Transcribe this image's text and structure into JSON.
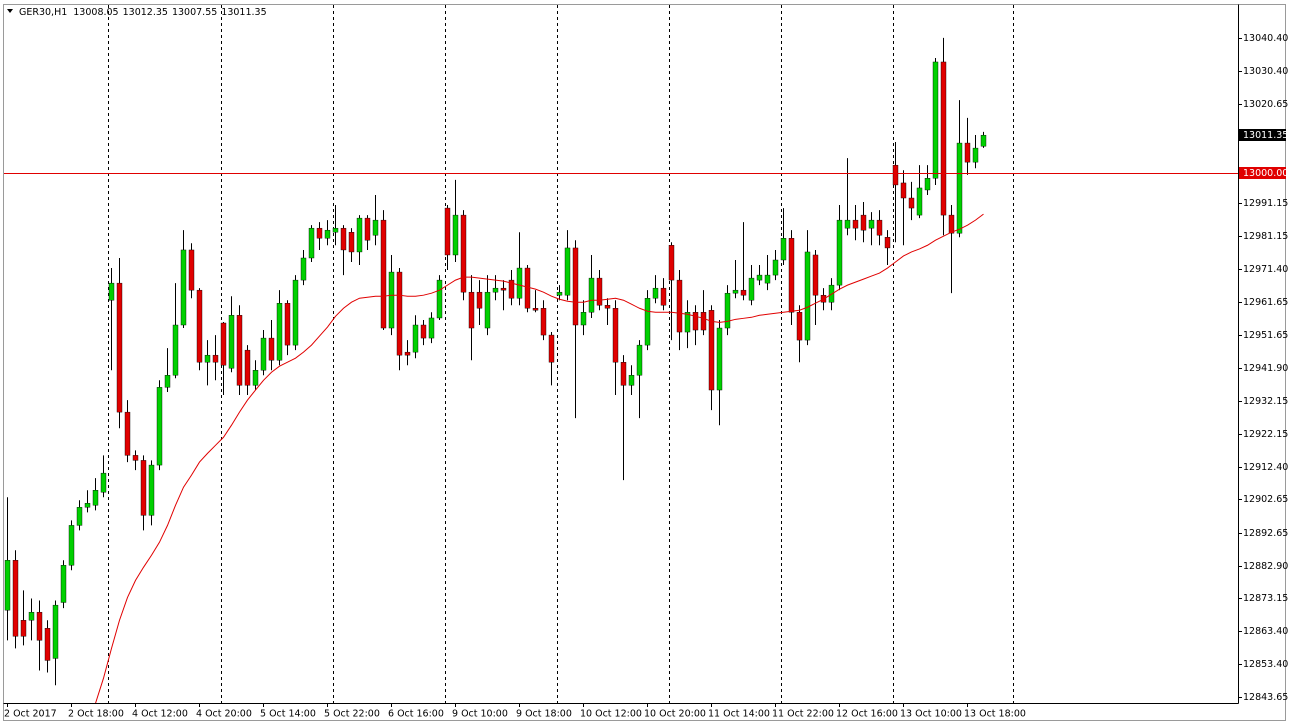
{
  "chart_data": {
    "type": "candlestick",
    "title": "GER30,H1",
    "categories": [
      "2 Oct 2017",
      null,
      null,
      null,
      null,
      null,
      null,
      null,
      "2 Oct 18:00",
      null,
      null,
      null,
      null,
      null,
      null,
      null,
      "4 Oct 12:00",
      null,
      null,
      null,
      null,
      null,
      null,
      null,
      "4 Oct 20:00",
      null,
      null,
      null,
      null,
      null,
      null,
      null,
      "5 Oct 14:00",
      null,
      null,
      null,
      null,
      null,
      null,
      null,
      "5 Oct 22:00",
      null,
      null,
      null,
      null,
      null,
      null,
      null,
      "6 Oct 16:00",
      null,
      null,
      null,
      null,
      null,
      null,
      null,
      "9 Oct 10:00",
      null,
      null,
      null,
      null,
      null,
      null,
      null,
      "9 Oct 18:00",
      null,
      null,
      null,
      null,
      null,
      null,
      null,
      "10 Oct 12:00",
      null,
      null,
      null,
      null,
      null,
      null,
      null,
      "10 Oct 20:00",
      null,
      null,
      null,
      null,
      null,
      null,
      null,
      "11 Oct 14:00",
      null,
      null,
      null,
      null,
      null,
      null,
      null,
      "11 Oct 22:00",
      null,
      null,
      null,
      null,
      null,
      null,
      null,
      "12 Oct 16:00",
      null,
      null,
      null,
      null,
      null,
      null,
      null,
      "13 Oct 10:00",
      null,
      null,
      null,
      null,
      null,
      null,
      null,
      "13 Oct 18:00",
      null,
      null
    ],
    "open": [
      12869.6,
      12884.5,
      12866.6,
      12866.6,
      12869.0,
      12864.2,
      12855.2,
      12871.9,
      12883.0,
      12894.9,
      12900.3,
      12900.9,
      12904.8,
      12962.1,
      12967.2,
      12928.7,
      12915.8,
      12914.3,
      12897.9,
      12912.9,
      12936.1,
      12939.7,
      12954.7,
      12977.1,
      12965.1,
      12943.6,
      12945.7,
      12955.3,
      12941.8,
      12957.6,
      12947.2,
      12936.7,
      12941.2,
      12950.8,
      12944.2,
      12961.2,
      12948.7,
      12968.1,
      12974.7,
      12983.6,
      12980.6,
      12982.4,
      12983.6,
      12982.4,
      12976.5,
      12986.6,
      12981.5,
      12986.0,
      12953.8,
      12970.5,
      12946.6,
      12946.6,
      12954.7,
      12950.8,
      12956.8,
      12989.6,
      12975.6,
      12987.5,
      12964.5,
      12964.5,
      12953.8,
      12964.5,
      12965.7,
      12968.1,
      12962.7,
      12971.7,
      12959.7,
      12959.7,
      12951.7,
      12963.6,
      12963.6,
      12977.7,
      12954.7,
      12958.5,
      12968.7,
      12960.6,
      12959.7,
      12943.6,
      12936.7,
      12939.7,
      12948.7,
      12962.7,
      12965.7,
      12978.5,
      12968.1,
      12952.6,
      12958.5,
      12958.5,
      12959.1,
      12935.3,
      12953.8,
      12964.2,
      12965.1,
      12962.1,
      12968.1,
      12967.2,
      12969.6,
      12974.1,
      12980.6,
      12958.5,
      12950.2,
      12975.6,
      12963.6,
      12961.5,
      12966.6,
      12983.6,
      12986.0,
      12987.5,
      12983.6,
      12986.0,
      12980.9,
      13002.4,
      12997.1,
      12992.6,
      12987.5,
      12995.0,
      12998.5,
      13033.2,
      12987.5,
      12982.1,
      13009.0,
      13003.3,
      13008.05
    ],
    "high": [
      12903.3,
      12887.5,
      12875.5,
      12873.1,
      12872.5,
      12866.6,
      12872.5,
      12884.5,
      12896.4,
      12902.4,
      12905.4,
      12909.0,
      12915.8,
      12971.7,
      12974.7,
      12932.3,
      12917.3,
      12915.8,
      12914.3,
      12938.2,
      12947.8,
      12967.2,
      12983.0,
      12979.1,
      12965.7,
      12950.2,
      12951.7,
      12955.6,
      12963.3,
      12960.6,
      12948.7,
      12944.2,
      12953.2,
      12956.2,
      12965.1,
      12962.1,
      12969.6,
      12977.1,
      12984.5,
      12985.4,
      12986.0,
      12990.5,
      12984.5,
      12983.6,
      12987.5,
      12987.5,
      12993.5,
      12989.0,
      12975.6,
      12971.7,
      12950.2,
      12957.6,
      12956.2,
      12958.5,
      12969.6,
      12990.5,
      12998.0,
      12989.0,
      12969.6,
      12968.1,
      12969.6,
      12969.6,
      12968.1,
      12971.1,
      12982.4,
      12972.6,
      12965.1,
      12962.1,
      12952.6,
      12966.6,
      12983.0,
      12980.0,
      12962.1,
      12975.6,
      12971.1,
      12962.7,
      12962.1,
      12945.7,
      12942.7,
      12950.2,
      12965.1,
      12969.6,
      12968.7,
      12979.4,
      12971.1,
      12962.1,
      12960.6,
      12965.1,
      12960.6,
      12956.2,
      12966.6,
      12974.1,
      12985.4,
      12972.6,
      12972.6,
      12975.6,
      12977.1,
      12989.6,
      12983.0,
      12960.6,
      12983.0,
      12977.1,
      12965.7,
      12968.7,
      12990.5,
      13004.5,
      12990.5,
      12991.4,
      12988.4,
      12989.0,
      12983.0,
      13009.3,
      13000.9,
      12997.4,
      13002.4,
      13002.4,
      13034.4,
      13040.4,
      12990.5,
      13021.8,
      13016.5,
      13011.4,
      13012.35
    ],
    "low": [
      12860.6,
      12858.2,
      12859.1,
      12860.6,
      12851.6,
      12851.0,
      12847.2,
      12870.2,
      12881.5,
      12893.4,
      12898.8,
      12899.4,
      12903.3,
      12941.2,
      12923.9,
      12913.8,
      12911.4,
      12893.4,
      12894.9,
      12911.4,
      12934.7,
      12938.8,
      12953.8,
      12962.7,
      12941.2,
      12936.7,
      12938.2,
      12933.8,
      12940.6,
      12933.8,
      12933.8,
      12935.3,
      12939.7,
      12941.2,
      12942.7,
      12945.7,
      12947.2,
      12966.6,
      12973.5,
      12977.1,
      12978.5,
      12978.5,
      12969.6,
      12973.5,
      12972.6,
      12977.1,
      12978.5,
      12953.2,
      12951.7,
      12941.2,
      12942.7,
      12944.8,
      12948.7,
      12949.3,
      12956.2,
      12971.1,
      12973.5,
      12962.1,
      12944.2,
      12954.7,
      12951.7,
      12962.1,
      12959.1,
      12960.6,
      12960.6,
      12958.5,
      12958.5,
      12950.2,
      12936.7,
      12962.1,
      12962.1,
      12926.9,
      12951.7,
      12956.8,
      12959.1,
      12954.7,
      12933.8,
      12908.4,
      12933.8,
      12926.9,
      12947.2,
      12961.2,
      12959.1,
      12950.2,
      12947.2,
      12947.8,
      12948.7,
      12951.7,
      12929.3,
      12924.8,
      12951.7,
      12962.7,
      12962.1,
      12960.6,
      12966.6,
      12965.1,
      12968.1,
      12972.6,
      12954.7,
      12943.6,
      12948.7,
      12954.7,
      12959.1,
      12959.1,
      12965.1,
      12981.5,
      12980.0,
      12979.4,
      12978.5,
      12978.5,
      12972.6,
      12979.4,
      12978.5,
      12986.0,
      12986.6,
      12993.5,
      12996.5,
      12981.5,
      12964.2,
      12980.9,
      12999.5,
      13001.5,
      13007.55
    ],
    "close": [
      12884.5,
      12861.8,
      12861.8,
      12869.0,
      12860.6,
      12854.6,
      12871.1,
      12883.0,
      12894.9,
      12900.3,
      12901.5,
      12905.4,
      12910.5,
      12967.2,
      12928.7,
      12915.8,
      12914.3,
      12897.9,
      12912.9,
      12936.1,
      12939.7,
      12954.7,
      12977.1,
      12965.1,
      12943.6,
      12945.7,
      12943.6,
      12942.7,
      12957.6,
      12936.7,
      12936.7,
      12941.2,
      12950.8,
      12944.2,
      12961.2,
      12948.7,
      12968.1,
      12974.7,
      12983.6,
      12980.6,
      12983.0,
      12983.6,
      12977.1,
      12976.5,
      12986.6,
      12980.0,
      12986.0,
      12953.8,
      12970.5,
      12945.7,
      12945.7,
      12954.7,
      12950.8,
      12956.8,
      12968.1,
      12975.6,
      12987.5,
      12964.5,
      12953.8,
      12959.7,
      12964.5,
      12965.7,
      12965.1,
      12962.7,
      12971.7,
      12959.7,
      12959.1,
      12951.7,
      12943.6,
      12964.5,
      12977.7,
      12954.7,
      12958.5,
      12968.7,
      12960.6,
      12959.7,
      12943.6,
      12936.7,
      12939.7,
      12948.7,
      12962.7,
      12965.7,
      12960.6,
      12968.1,
      12952.6,
      12958.5,
      12953.2,
      12953.2,
      12935.3,
      12953.8,
      12964.2,
      12965.1,
      12963.6,
      12968.7,
      12969.6,
      12969.6,
      12974.1,
      12980.6,
      12958.5,
      12950.2,
      12976.5,
      12963.6,
      12961.5,
      12966.6,
      12986.0,
      12986.0,
      12983.6,
      12983.0,
      12986.0,
      12981.5,
      12977.7,
      12996.5,
      12992.6,
      12989.6,
      12995.6,
      12998.5,
      13033.2,
      12987.5,
      12982.1,
      13009.0,
      13003.3,
      13007.5,
      13011.35
    ],
    "up_color": "#00d000",
    "down_color": "#e00000",
    "wick_color": "#000000",
    "moving_average": {
      "color": "#e00000",
      "values": [
        null,
        null,
        null,
        null,
        null,
        null,
        null,
        null,
        null,
        null,
        null,
        12841.8,
        12849.3,
        12858.2,
        12866.6,
        12873.4,
        12878.5,
        12882.4,
        12886.0,
        12889.9,
        12894.9,
        12900.9,
        12906.3,
        12909.9,
        12913.8,
        12916.4,
        12918.8,
        12921.2,
        12924.8,
        12928.7,
        12932.3,
        12935.3,
        12938.2,
        12940.6,
        12942.4,
        12943.6,
        12944.8,
        12946.6,
        12948.7,
        12951.4,
        12954.1,
        12957.3,
        12959.7,
        12961.5,
        12962.7,
        12963.0,
        12963.3,
        12963.3,
        12963.6,
        12963.6,
        12963.3,
        12963.3,
        12963.6,
        12964.2,
        12965.1,
        12966.6,
        12968.1,
        12969.0,
        12969.0,
        12968.7,
        12968.4,
        12968.1,
        12967.8,
        12967.2,
        12966.6,
        12966.0,
        12965.4,
        12964.5,
        12963.3,
        12962.4,
        12961.8,
        12961.5,
        12961.5,
        12962.1,
        12962.1,
        12962.4,
        12962.7,
        12962.1,
        12960.9,
        12959.7,
        12958.8,
        12958.5,
        12958.5,
        12958.5,
        12958.2,
        12957.9,
        12957.3,
        12956.7,
        12955.8,
        12955.5,
        12955.8,
        12956.4,
        12956.7,
        12957.0,
        12957.6,
        12957.9,
        12958.2,
        12958.5,
        12958.8,
        12959.1,
        12960.0,
        12961.2,
        12962.4,
        12963.9,
        12965.4,
        12966.6,
        12967.5,
        12968.4,
        12969.3,
        12970.2,
        12971.7,
        12973.5,
        12975.3,
        12976.5,
        12977.4,
        12978.5,
        12980.0,
        12981.2,
        12982.4,
        12983.3,
        12984.5,
        12986.0,
        12987.8
      ]
    },
    "price_line": {
      "value": 13000,
      "label": "13000.00",
      "color": "#e00000"
    },
    "ylim": [
      12841.9,
      13050.2
    ],
    "yticks": [
      {
        "value": 12843.65,
        "label": "12843.65"
      },
      {
        "value": 12853.4,
        "label": "12853.40"
      },
      {
        "value": 12863.4,
        "label": "12863.40"
      },
      {
        "value": 12873.15,
        "label": "12873.15"
      },
      {
        "value": 12882.9,
        "label": "12882.90"
      },
      {
        "value": 12892.65,
        "label": "12892.65"
      },
      {
        "value": 12902.65,
        "label": "12902.65"
      },
      {
        "value": 12912.4,
        "label": "12912.40"
      },
      {
        "value": 12922.15,
        "label": "12922.15"
      },
      {
        "value": 12932.15,
        "label": "12932.15"
      },
      {
        "value": 12941.9,
        "label": "12941.90"
      },
      {
        "value": 12951.65,
        "label": "12951.65"
      },
      {
        "value": 12961.65,
        "label": "12961.65"
      },
      {
        "value": 12971.4,
        "label": "12971.40"
      },
      {
        "value": 12981.15,
        "label": "12981.15"
      },
      {
        "value": 12991.15,
        "label": "12991.15"
      },
      {
        "value": 13020.65,
        "label": "13020.65"
      },
      {
        "value": 13030.4,
        "label": "13030.40"
      },
      {
        "value": 13040.4,
        "label": "13040.40"
      }
    ]
  }
}
